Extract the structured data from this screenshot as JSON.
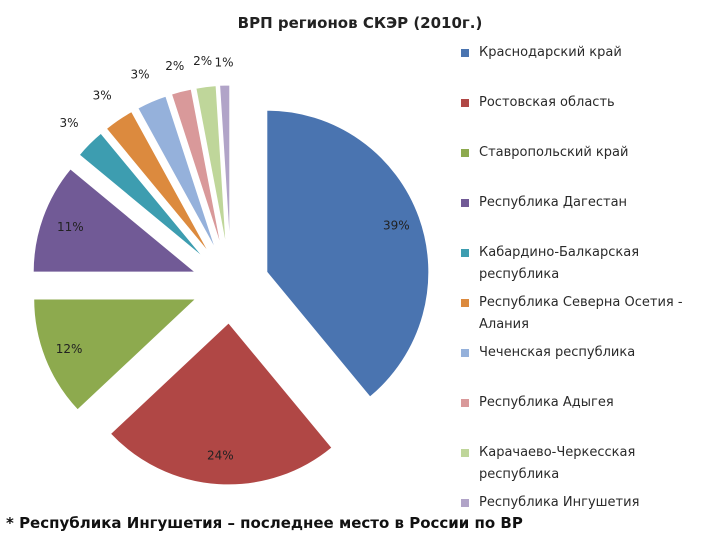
{
  "chart_data": {
    "type": "pie",
    "title": "ВРП регионов СКЭР (2010г.)",
    "categories": [
      "Краснодарский край",
      "Ростовская область",
      "Ставропольский край",
      "Республика Дагестан",
      "Кабардино-Балкарская республика",
      "Республика Северна Осетия - Алания",
      "Чеченская республика",
      "Республика Адыгея",
      "Карачаево-Черкесская республика",
      "Республика Ингушетия"
    ],
    "values": [
      39,
      24,
      12,
      11,
      3,
      3,
      3,
      2,
      2,
      1
    ],
    "data_labels": [
      "39%",
      "24%",
      "12%",
      "11%",
      "3%",
      "3%",
      "3%",
      "2%",
      "2%",
      "1%"
    ],
    "colors": [
      "#4A74B0",
      "#B04745",
      "#8DAA4E",
      "#715A96",
      "#3D9DB0",
      "#DC8A3E",
      "#95B1DB",
      "#D9999A",
      "#BFD69A",
      "#B1A4C8"
    ],
    "exploded": true,
    "legend_position": "right"
  },
  "footnote": "* Республика Ингушетия – последнее место в России по ВР"
}
